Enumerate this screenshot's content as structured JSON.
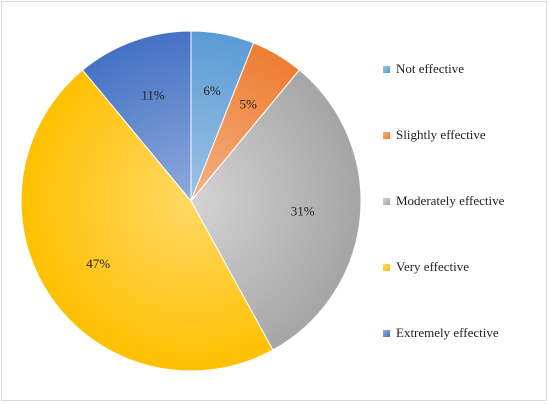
{
  "chart_data": {
    "type": "pie",
    "title": "",
    "slices": [
      {
        "label": "Not effective",
        "value": 6,
        "display": "6%",
        "color": "#5b9bd5",
        "colorLight": "#9dc3e6"
      },
      {
        "label": "Slightly effective",
        "value": 5,
        "display": "5%",
        "color": "#ed7d31",
        "colorLight": "#f4b183"
      },
      {
        "label": "Moderately effective",
        "value": 31,
        "display": "31%",
        "color": "#a5a5a5",
        "colorLight": "#d4d4d4"
      },
      {
        "label": "Very effective",
        "value": 47,
        "display": "47%",
        "color": "#ffc000",
        "colorLight": "#ffd966"
      },
      {
        "label": "Extremely effective",
        "value": 11,
        "display": "11%",
        "color": "#4472c4",
        "colorLight": "#8faadc"
      }
    ],
    "legend_position": "right"
  }
}
